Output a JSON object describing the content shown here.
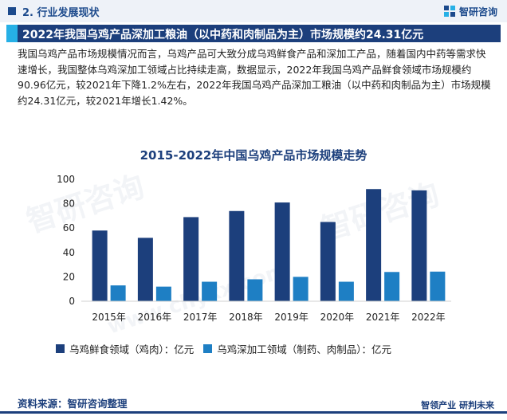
{
  "header": {
    "section": "2. 行业发展现状",
    "logo_text": "智研咨询"
  },
  "title_band": "2022年我国乌鸡产品深加工粮油（以中药和肉制品为主）市场规模约24.31亿元",
  "paragraph": "我国乌鸡产品市场规模情况而言，乌鸡产品可大致分成乌鸡鲜食产品和深加工产品，随着国内中药等需求快速增长，我国整体乌鸡深加工领域占比持续走高，数据显示，2022年我国乌鸡产品鲜食领域市场规模约90.96亿元，较2021年下降1.2%左右，2022年我国乌鸡产品深加工粮油（以中药和肉制品为主）市场规模约24.31亿元，较2021年增长1.42%。",
  "watermark": {
    "brand": "智研咨询",
    "site": "www.chyxx.com"
  },
  "chart_data": {
    "type": "bar",
    "title": "2015-2022年中国乌鸡产品市场规模走势",
    "categories": [
      "2015年",
      "2016年",
      "2017年",
      "2018年",
      "2019年",
      "2020年",
      "2021年",
      "2022年"
    ],
    "series": [
      {
        "name": "乌鸡鲜食领域（鸡肉）：亿元",
        "color": "#1c3f7c",
        "values": [
          58,
          52,
          69,
          74,
          81,
          65,
          92,
          90.96
        ]
      },
      {
        "name": "乌鸡深加工领域（制药、肉制品）：亿元",
        "color": "#1e7fc4",
        "values": [
          13,
          12,
          16,
          18,
          20,
          16,
          24,
          24.31
        ]
      }
    ],
    "yticks": [
      0,
      20,
      40,
      60,
      80,
      100
    ],
    "ylim": [
      0,
      100
    ],
    "grid": false,
    "legend": "bottom"
  },
  "source": "资料来源：智研咨询整理",
  "bottom_brand": "智领产业 研判未来"
}
